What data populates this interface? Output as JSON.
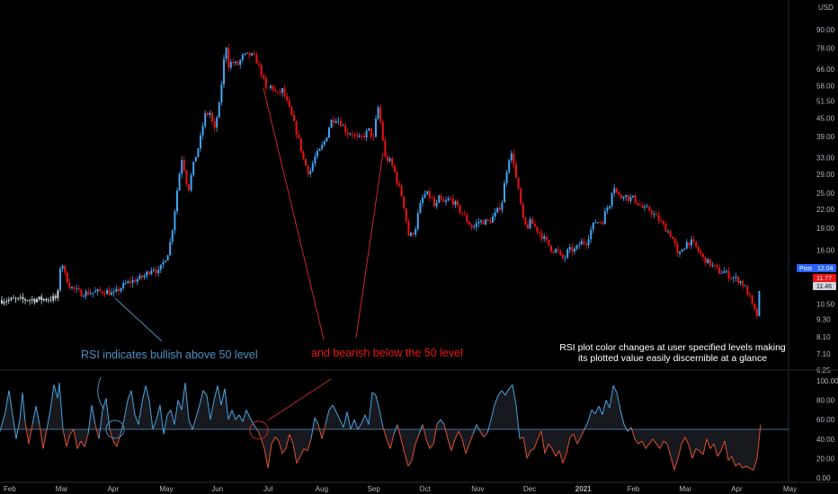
{
  "colors": {
    "bull": "#42a5f5",
    "bear": "#e81414",
    "rsi_up": "#4aa3e0",
    "rsi_down": "#e0502e",
    "annotation_line": "#c62828",
    "callout_blue": "#4a90c2",
    "axis_text": "#b2b5be",
    "mid_line": "#5c8fb8"
  },
  "price_axis": {
    "currency": "USD",
    "scale": "log",
    "ticks": [
      "90.00",
      "78.00",
      "66.00",
      "58.00",
      "51.50",
      "45.00",
      "39.00",
      "33.00",
      "29.00",
      "25.00",
      "22.00",
      "19.00",
      "16.00",
      "14.00",
      "10.50",
      "9.30",
      "8.10",
      "7.10",
      "6.25"
    ]
  },
  "tags": {
    "post_label": "Post",
    "post_value": "12.04",
    "red_value": "11.77",
    "gray_value": "11.46"
  },
  "rsi_axis": {
    "ticks": [
      "100.00",
      "80.00",
      "60.00",
      "40.00",
      "20.00",
      "0.00"
    ]
  },
  "time_axis": {
    "labels": [
      "Feb",
      "Mar",
      "Apr",
      "May",
      "Jun",
      "Jul",
      "Aug",
      "Sep",
      "Oct",
      "Nov",
      "Dec",
      "2021",
      "Feb",
      "Mar",
      "Apr",
      "May"
    ]
  },
  "annotations": {
    "bullish": "RSI indicates bullish above 50 level",
    "bearish": "and bearish below the 50 level",
    "note_line1": "RSI plot color changes at user specified levels making",
    "note_line2": "its plotted value easily discernible at a glance"
  },
  "chart_data": [
    {
      "type": "candlestick",
      "y_scale": "log",
      "ylim": [
        6.25,
        100
      ],
      "x_labels": [
        "Feb",
        "Mar",
        "Apr",
        "May",
        "Jun",
        "Jul",
        "Aug",
        "Sep",
        "Oct",
        "Nov",
        "Dec",
        "2021",
        "Feb",
        "Mar",
        "Apr",
        "May"
      ],
      "series": [
        {
          "name": "",
          "close_by_month_approx": [
            {
              "month": "Feb",
              "value": 10.9
            },
            {
              "month": "Mar",
              "value": 11.3
            },
            {
              "month": "Apr",
              "value": 11.6
            },
            {
              "month": "May",
              "value": 14.5
            },
            {
              "month": "Jun",
              "value": 72
            },
            {
              "month": "Jul",
              "value": 55
            },
            {
              "month": "Aug",
              "value": 32
            },
            {
              "month": "Sep",
              "value": 40
            },
            {
              "month": "Oct",
              "value": 21
            },
            {
              "month": "Nov",
              "value": 19
            },
            {
              "month": "Dec",
              "value": 20
            },
            {
              "month": "2021",
              "value": 15.5
            },
            {
              "month": "Feb",
              "value": 25
            },
            {
              "month": "Mar",
              "value": 16.5
            },
            {
              "month": "Apr",
              "value": 13
            },
            {
              "month": "May",
              "value": 12.04
            }
          ]
        }
      ]
    },
    {
      "type": "line",
      "ylim": [
        0,
        100
      ],
      "midline": 50,
      "series": [
        {
          "name": "",
          "points": [
            [
              0,
              48
            ],
            [
              6,
              68
            ],
            [
              10,
              90
            ],
            [
              14,
              65
            ],
            [
              18,
              40
            ],
            [
              22,
              60
            ],
            [
              25,
              88
            ],
            [
              28,
              58
            ],
            [
              32,
              35
            ],
            [
              36,
              55
            ],
            [
              40,
              74
            ],
            [
              44,
              55
            ],
            [
              48,
              30
            ],
            [
              52,
              50
            ],
            [
              56,
              70
            ],
            [
              60,
              96
            ],
            [
              64,
              82
            ],
            [
              66,
              98
            ],
            [
              70,
              50
            ],
            [
              74,
              32
            ],
            [
              78,
              45
            ],
            [
              82,
              50
            ],
            [
              86,
              30
            ],
            [
              90,
              38
            ],
            [
              94,
              32
            ],
            [
              98,
              45
            ],
            [
              102,
              75
            ],
            [
              106,
              55
            ],
            [
              110,
              40
            ],
            [
              114,
              70
            ],
            [
              118,
              82
            ],
            [
              122,
              50
            ],
            [
              126,
              38
            ],
            [
              130,
              32
            ],
            [
              134,
              45
            ],
            [
              138,
              60
            ],
            [
              142,
              80
            ],
            [
              146,
              90
            ],
            [
              150,
              65
            ],
            [
              154,
              55
            ],
            [
              158,
              78
            ],
            [
              162,
              95
            ],
            [
              166,
              80
            ],
            [
              170,
              50
            ],
            [
              174,
              60
            ],
            [
              178,
              75
            ],
            [
              182,
              45
            ],
            [
              186,
              65
            ],
            [
              190,
              70
            ],
            [
              194,
              55
            ],
            [
              198,
              80
            ],
            [
              202,
              70
            ],
            [
              206,
              98
            ],
            [
              210,
              60
            ],
            [
              214,
              50
            ],
            [
              218,
              62
            ],
            [
              222,
              75
            ],
            [
              226,
              90
            ],
            [
              230,
              85
            ],
            [
              234,
              60
            ],
            [
              238,
              80
            ],
            [
              242,
              95
            ],
            [
              246,
              75
            ],
            [
              250,
              92
            ],
            [
              254,
              60
            ],
            [
              258,
              70
            ],
            [
              262,
              60
            ],
            [
              266,
              65
            ],
            [
              270,
              58
            ],
            [
              274,
              70
            ],
            [
              278,
              62
            ],
            [
              282,
              55
            ],
            [
              286,
              50
            ],
            [
              290,
              42
            ],
            [
              294,
              30
            ],
            [
              298,
              10
            ],
            [
              302,
              35
            ],
            [
              306,
              42
            ],
            [
              310,
              38
            ],
            [
              314,
              25
            ],
            [
              318,
              30
            ],
            [
              322,
              45
            ],
            [
              326,
              35
            ],
            [
              330,
              15
            ],
            [
              334,
              22
            ],
            [
              338,
              30
            ],
            [
              342,
              28
            ],
            [
              346,
              40
            ],
            [
              350,
              62
            ],
            [
              354,
              55
            ],
            [
              358,
              40
            ],
            [
              362,
              55
            ],
            [
              366,
              70
            ],
            [
              370,
              75
            ],
            [
              374,
              68
            ],
            [
              378,
              60
            ],
            [
              382,
              52
            ],
            [
              386,
              68
            ],
            [
              390,
              50
            ],
            [
              394,
              60
            ],
            [
              398,
              50
            ],
            [
              402,
              56
            ],
            [
              406,
              65
            ],
            [
              410,
              55
            ],
            [
              414,
              88
            ],
            [
              418,
              85
            ],
            [
              422,
              70
            ],
            [
              426,
              52
            ],
            [
              430,
              40
            ],
            [
              434,
              30
            ],
            [
              438,
              45
            ],
            [
              442,
              55
            ],
            [
              446,
              40
            ],
            [
              450,
              25
            ],
            [
              454,
              12
            ],
            [
              458,
              18
            ],
            [
              462,
              35
            ],
            [
              466,
              45
            ],
            [
              470,
              55
            ],
            [
              474,
              40
            ],
            [
              478,
              30
            ],
            [
              482,
              35
            ],
            [
              486,
              55
            ],
            [
              490,
              60
            ],
            [
              494,
              55
            ],
            [
              498,
              40
            ],
            [
              502,
              28
            ],
            [
              506,
              40
            ],
            [
              510,
              48
            ],
            [
              514,
              40
            ],
            [
              518,
              25
            ],
            [
              522,
              35
            ],
            [
              526,
              45
            ],
            [
              530,
              55
            ],
            [
              534,
              48
            ],
            [
              538,
              42
            ],
            [
              542,
              46
            ],
            [
              546,
              60
            ],
            [
              550,
              75
            ],
            [
              554,
              85
            ],
            [
              558,
              90
            ],
            [
              562,
              85
            ],
            [
              566,
              92
            ],
            [
              570,
              96
            ],
            [
              574,
              75
            ],
            [
              578,
              40
            ],
            [
              582,
              42
            ],
            [
              586,
              20
            ],
            [
              590,
              28
            ],
            [
              594,
              30
            ],
            [
              598,
              40
            ],
            [
              602,
              48
            ],
            [
              606,
              25
            ],
            [
              610,
              35
            ],
            [
              614,
              30
            ],
            [
              618,
              22
            ],
            [
              622,
              28
            ],
            [
              626,
              15
            ],
            [
              630,
              25
            ],
            [
              634,
              42
            ],
            [
              638,
              45
            ],
            [
              642,
              35
            ],
            [
              646,
              42
            ],
            [
              650,
              50
            ],
            [
              654,
              58
            ],
            [
              658,
              70
            ],
            [
              662,
              66
            ],
            [
              666,
              74
            ],
            [
              670,
              65
            ],
            [
              674,
              80
            ],
            [
              678,
              72
            ],
            [
              682,
              95
            ],
            [
              686,
              88
            ],
            [
              690,
              70
            ],
            [
              694,
              55
            ],
            [
              698,
              48
            ],
            [
              702,
              52
            ],
            [
              706,
              40
            ],
            [
              710,
              35
            ],
            [
              714,
              38
            ],
            [
              718,
              30
            ],
            [
              722,
              35
            ],
            [
              726,
              40
            ],
            [
              730,
              35
            ],
            [
              734,
              30
            ],
            [
              738,
              38
            ],
            [
              742,
              35
            ],
            [
              746,
              22
            ],
            [
              750,
              8
            ],
            [
              754,
              20
            ],
            [
              758,
              35
            ],
            [
              762,
              42
            ],
            [
              766,
              34
            ],
            [
              770,
              20
            ],
            [
              774,
              30
            ],
            [
              778,
              28
            ],
            [
              782,
              24
            ],
            [
              786,
              40
            ],
            [
              790,
              30
            ],
            [
              794,
              35
            ],
            [
              798,
              22
            ],
            [
              802,
              28
            ],
            [
              806,
              38
            ],
            [
              810,
              18
            ],
            [
              814,
              22
            ],
            [
              818,
              12
            ],
            [
              822,
              15
            ],
            [
              826,
              10
            ],
            [
              830,
              12
            ],
            [
              834,
              10
            ],
            [
              838,
              8
            ],
            [
              842,
              20
            ],
            [
              846,
              55
            ]
          ]
        }
      ]
    }
  ]
}
